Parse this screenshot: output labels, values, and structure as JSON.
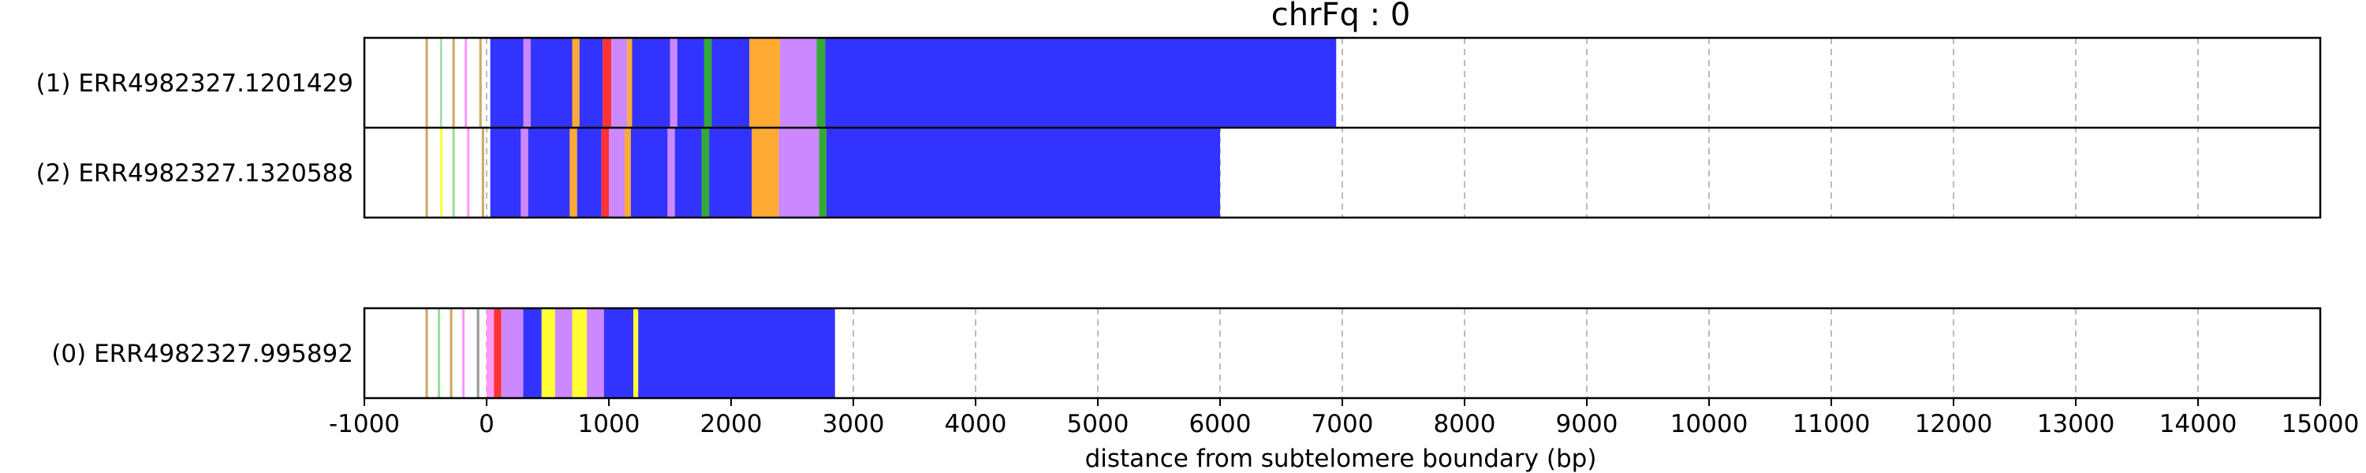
{
  "chart_data": {
    "type": "read-heatmap",
    "title": "chrFq : 0",
    "xlabel": "distance from subtelomere boundary (bp)",
    "xlim": [
      -1000,
      15000
    ],
    "x_ticks": [
      -1000,
      0,
      1000,
      2000,
      3000,
      4000,
      5000,
      6000,
      7000,
      8000,
      9000,
      10000,
      11000,
      12000,
      13000,
      14000,
      15000
    ],
    "x_tick_labels": [
      "-1000",
      "0",
      "1000",
      "2000",
      "3000",
      "4000",
      "5000",
      "6000",
      "7000",
      "8000",
      "9000",
      "10000",
      "11000",
      "12000",
      "13000",
      "14000",
      "15000"
    ],
    "grid": "vertical dashed",
    "colors": {
      "blue": "#3333ff",
      "violet": "#cc88ff",
      "orange": "#ffaa33",
      "green": "#33aa33",
      "red": "#ff3333",
      "yellow": "#ffff33",
      "tan": "#ccaa66",
      "pink": "#ff99ff",
      "lightgreen": "#99dd99",
      "grey": "#999999"
    },
    "groups": [
      {
        "reads": [
          {
            "label": "(1) ERR4982327.1201429",
            "start": -500,
            "end": 6950,
            "segments": [
              {
                "start": -500,
                "end": -480,
                "color": "tan"
              },
              {
                "start": -380,
                "end": -365,
                "color": "lightgreen"
              },
              {
                "start": -280,
                "end": -260,
                "color": "tan"
              },
              {
                "start": -180,
                "end": -160,
                "color": "pink"
              },
              {
                "start": -60,
                "end": -40,
                "color": "tan"
              },
              {
                "start": 30,
                "end": 300,
                "color": "blue"
              },
              {
                "start": 300,
                "end": 360,
                "color": "violet"
              },
              {
                "start": 360,
                "end": 700,
                "color": "blue"
              },
              {
                "start": 700,
                "end": 760,
                "color": "orange"
              },
              {
                "start": 760,
                "end": 950,
                "color": "blue"
              },
              {
                "start": 950,
                "end": 1020,
                "color": "red"
              },
              {
                "start": 1020,
                "end": 1150,
                "color": "violet"
              },
              {
                "start": 1150,
                "end": 1190,
                "color": "orange"
              },
              {
                "start": 1190,
                "end": 1500,
                "color": "blue"
              },
              {
                "start": 1500,
                "end": 1560,
                "color": "violet"
              },
              {
                "start": 1560,
                "end": 1780,
                "color": "blue"
              },
              {
                "start": 1780,
                "end": 1840,
                "color": "green"
              },
              {
                "start": 1840,
                "end": 2150,
                "color": "blue"
              },
              {
                "start": 2150,
                "end": 2400,
                "color": "orange"
              },
              {
                "start": 2400,
                "end": 2700,
                "color": "violet"
              },
              {
                "start": 2700,
                "end": 2770,
                "color": "green"
              },
              {
                "start": 2770,
                "end": 6950,
                "color": "blue"
              }
            ]
          },
          {
            "label": "(2) ERR4982327.1320588",
            "start": -500,
            "end": 6000,
            "segments": [
              {
                "start": -500,
                "end": -480,
                "color": "tan"
              },
              {
                "start": -380,
                "end": -360,
                "color": "yellow"
              },
              {
                "start": -280,
                "end": -260,
                "color": "lightgreen"
              },
              {
                "start": -160,
                "end": -140,
                "color": "pink"
              },
              {
                "start": -40,
                "end": -20,
                "color": "tan"
              },
              {
                "start": 30,
                "end": 280,
                "color": "blue"
              },
              {
                "start": 280,
                "end": 340,
                "color": "violet"
              },
              {
                "start": 340,
                "end": 680,
                "color": "blue"
              },
              {
                "start": 680,
                "end": 740,
                "color": "orange"
              },
              {
                "start": 740,
                "end": 940,
                "color": "blue"
              },
              {
                "start": 940,
                "end": 1000,
                "color": "red"
              },
              {
                "start": 1000,
                "end": 1130,
                "color": "violet"
              },
              {
                "start": 1130,
                "end": 1180,
                "color": "orange"
              },
              {
                "start": 1180,
                "end": 1480,
                "color": "blue"
              },
              {
                "start": 1480,
                "end": 1540,
                "color": "violet"
              },
              {
                "start": 1540,
                "end": 1760,
                "color": "blue"
              },
              {
                "start": 1760,
                "end": 1820,
                "color": "green"
              },
              {
                "start": 1820,
                "end": 2170,
                "color": "blue"
              },
              {
                "start": 2170,
                "end": 2390,
                "color": "orange"
              },
              {
                "start": 2390,
                "end": 2720,
                "color": "violet"
              },
              {
                "start": 2720,
                "end": 2780,
                "color": "green"
              },
              {
                "start": 2780,
                "end": 6000,
                "color": "blue"
              }
            ]
          }
        ]
      },
      {
        "reads": [
          {
            "label": "(0) ERR4982327.995892",
            "start": -500,
            "end": 2850,
            "segments": [
              {
                "start": -500,
                "end": -480,
                "color": "tan"
              },
              {
                "start": -400,
                "end": -380,
                "color": "lightgreen"
              },
              {
                "start": -300,
                "end": -280,
                "color": "tan"
              },
              {
                "start": -200,
                "end": -180,
                "color": "pink"
              },
              {
                "start": -80,
                "end": -60,
                "color": "grey"
              },
              {
                "start": 0,
                "end": 60,
                "color": "pink"
              },
              {
                "start": 60,
                "end": 120,
                "color": "red"
              },
              {
                "start": 120,
                "end": 300,
                "color": "violet"
              },
              {
                "start": 300,
                "end": 450,
                "color": "blue"
              },
              {
                "start": 450,
                "end": 560,
                "color": "yellow"
              },
              {
                "start": 560,
                "end": 700,
                "color": "violet"
              },
              {
                "start": 700,
                "end": 820,
                "color": "yellow"
              },
              {
                "start": 820,
                "end": 960,
                "color": "violet"
              },
              {
                "start": 960,
                "end": 1200,
                "color": "blue"
              },
              {
                "start": 1200,
                "end": 1240,
                "color": "yellow"
              },
              {
                "start": 1240,
                "end": 2850,
                "color": "blue"
              }
            ]
          }
        ]
      }
    ]
  }
}
